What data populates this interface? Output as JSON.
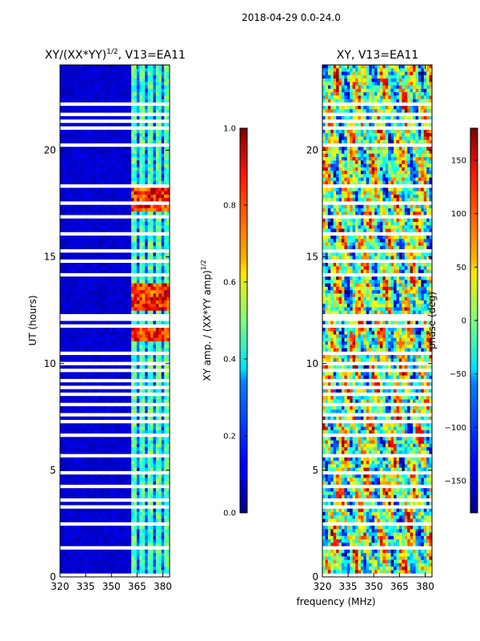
{
  "suptitle": "2018-04-29 0.0-24.0",
  "shared_xlabel": "frequency (MHz)",
  "chart_data": [
    {
      "type": "heatmap",
      "title_main": "XY/(XX*YY)",
      "title_sup": "1/2",
      "title_rest": ", V13=EA11",
      "xlabel": "",
      "ylabel": "UT (hours)",
      "xlim": [
        320,
        384
      ],
      "ylim": [
        0,
        24
      ],
      "xticks": [
        320,
        335,
        350,
        365,
        380
      ],
      "yticks": [
        0,
        5,
        10,
        15,
        20
      ],
      "colormap": "jet",
      "colorbar": {
        "label_main": "XY amp. / (XX*YY amp)",
        "label_sup": "1/2",
        "range": [
          0.0,
          1.0
        ],
        "ticks": [
          "0.0",
          "0.2",
          "0.4",
          "0.6",
          "0.8",
          "1.0"
        ]
      },
      "description_values": {
        "background_level": 0.05,
        "channel_band_mhz": [
          361,
          384
        ],
        "bright_bands_hours": [
          [
            11.0,
            11.8
          ],
          [
            12.5,
            13.8
          ],
          [
            17.2,
            18.2
          ]
        ]
      }
    },
    {
      "type": "heatmap",
      "title_main": "XY, V13=EA11",
      "xlabel": "frequency (MHz)",
      "ylabel": "",
      "xlim": [
        320,
        384
      ],
      "ylim": [
        0,
        24
      ],
      "xticks": [
        320,
        335,
        350,
        365,
        380
      ],
      "yticks": [
        0,
        5,
        10,
        15,
        20
      ],
      "colormap": "jet",
      "colorbar": {
        "label_main": "phase (deg)",
        "range": [
          -180,
          180
        ],
        "ticks": [
          "−150",
          "−100",
          "−50",
          "0",
          "50",
          "100",
          "150"
        ]
      }
    }
  ],
  "colors": {
    "jet_low": "#00007f",
    "jet_high": "#7f0000",
    "axis": "#000000",
    "gap": "#ffffff"
  }
}
